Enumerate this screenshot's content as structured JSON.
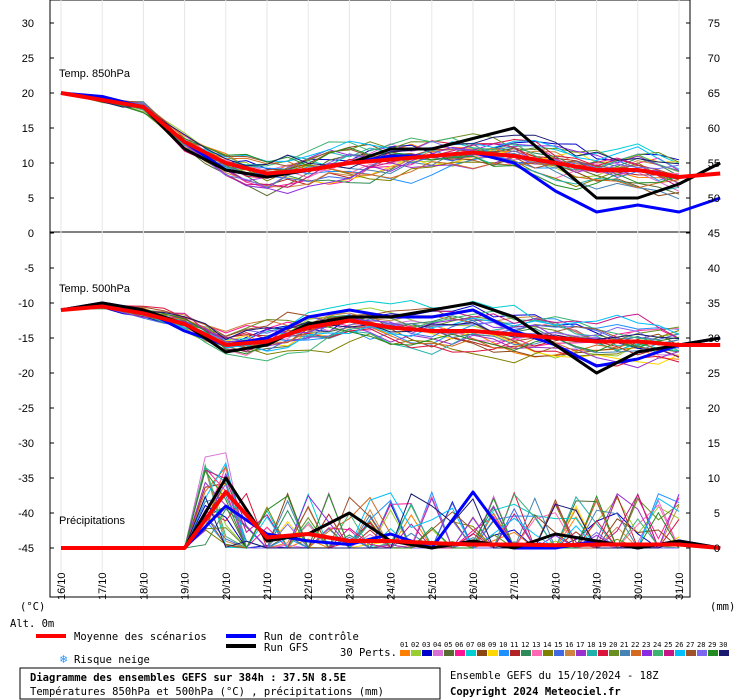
{
  "chart_data": {
    "type": "line",
    "title": "Diagramme des ensembles GEFS sur 384h : 37.5N 8.5E",
    "subtitle": "Températures 850hPa et 500hPa (°C) , précipitations (mm)",
    "x": [
      "16/10",
      "17/10",
      "18/10",
      "19/10",
      "20/10",
      "21/10",
      "22/10",
      "23/10",
      "24/10",
      "25/10",
      "26/10",
      "27/10",
      "28/10",
      "29/10",
      "30/10",
      "31/10"
    ],
    "y_left_ticks": [
      "30",
      "25",
      "20",
      "15",
      "10",
      "5",
      "0",
      "-5",
      "-10",
      "-15",
      "-20",
      "-25",
      "-30",
      "-35",
      "-40",
      "-45"
    ],
    "y_right_ticks": [
      "75",
      "70",
      "65",
      "60",
      "55",
      "50",
      "45",
      "40",
      "35",
      "30",
      "25",
      "20",
      "15",
      "10",
      "5",
      "0"
    ],
    "ylim_left": [
      -45,
      30
    ],
    "left_unit": "(°C)",
    "right_unit": "(mm)",
    "alt_label": "Alt. 0m",
    "panels": {
      "t850": {
        "label": "Temp. 850hPa"
      },
      "t500": {
        "label": "Temp. 500hPa"
      },
      "precip": {
        "label": "Précipitations"
      }
    },
    "series": [
      {
        "name": "Moyenne des scénarios",
        "color": "#ff0000",
        "t850": [
          20,
          19,
          18,
          13,
          10,
          8.5,
          9,
          10,
          10.5,
          11,
          11.5,
          11,
          10,
          9,
          9,
          8,
          8.5
        ],
        "t500": [
          -11,
          -10.5,
          -11.5,
          -13,
          -16,
          -15.5,
          -13.5,
          -12.5,
          -13.5,
          -14,
          -14,
          -14.5,
          -15,
          -15.5,
          -15.5,
          -16,
          -16
        ],
        "precip": [
          0,
          0,
          0,
          0,
          8,
          1.5,
          2,
          1,
          1,
          0.7,
          0.5,
          0.5,
          0.4,
          0.5,
          0.5,
          0.5,
          0
        ]
      },
      {
        "name": "Run de contrôle",
        "color": "#0000ff",
        "t850": [
          20,
          19.5,
          18,
          13,
          9,
          8,
          9,
          10,
          11,
          11,
          11.5,
          10,
          6,
          3,
          4,
          3,
          5
        ],
        "t500": [
          -11,
          -10,
          -11,
          -14,
          -16,
          -15,
          -12,
          -11,
          -12,
          -12,
          -11,
          -14,
          -16,
          -19,
          -18,
          -16,
          -15
        ],
        "precip": [
          0,
          0,
          0,
          0,
          6,
          2,
          1,
          0.5,
          2,
          0,
          8,
          0,
          0,
          1,
          0,
          1,
          0
        ]
      },
      {
        "name": "Run GFS",
        "color": "#000000",
        "t850": [
          20,
          19,
          18,
          12,
          9,
          8,
          9,
          10,
          12,
          12,
          13.5,
          15,
          10,
          5,
          5,
          7,
          10
        ],
        "t500": [
          -11,
          -10,
          -11,
          -13,
          -17,
          -16,
          -13,
          -12,
          -12,
          -11,
          -10,
          -12,
          -16,
          -20,
          -17,
          -16,
          -15
        ],
        "precip": [
          0,
          0,
          0,
          0,
          10,
          1,
          2,
          5,
          1,
          0,
          1,
          0,
          2,
          1,
          0,
          1,
          0
        ]
      }
    ],
    "risque_neige_label": "Risque neige",
    "perts_label": "30 Perts.",
    "perts": [
      "01",
      "02",
      "03",
      "04",
      "05",
      "06",
      "07",
      "08",
      "09",
      "10",
      "11",
      "12",
      "13",
      "14",
      "15",
      "16",
      "17",
      "18",
      "19",
      "20",
      "21",
      "22",
      "23",
      "24",
      "25",
      "26",
      "27",
      "28",
      "29",
      "30"
    ],
    "pert_colors": [
      "#ff7f00",
      "#9acd32",
      "#0000cd",
      "#da70d6",
      "#556b2f",
      "#ff1493",
      "#00ced1",
      "#8b4513",
      "#ffd700",
      "#1e90ff",
      "#b22222",
      "#2e8b57",
      "#ff69b4",
      "#808000",
      "#4169e1",
      "#cd853f",
      "#9932cc",
      "#20b2aa",
      "#dc143c",
      "#6b8e23",
      "#4682b4",
      "#d2691e",
      "#8a2be2",
      "#3cb371",
      "#c71585",
      "#00bfff",
      "#a0522d",
      "#7b68ee",
      "#228b22",
      "#191970"
    ],
    "ensemble_info": "Ensemble GEFS du 15/10/2024 - 18Z",
    "copyright": "Copyright 2024 Meteociel.fr"
  }
}
